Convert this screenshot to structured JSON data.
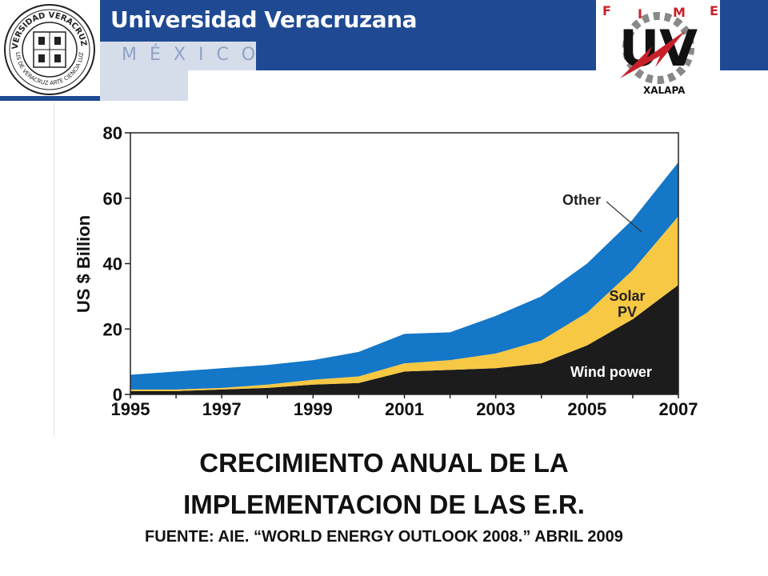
{
  "header": {
    "title": "Universidad Veracruzana",
    "subtitle": "MÉXICO",
    "seal_alt": "UNIVERSIDAD VERACRUZANA",
    "seal_motto": "LIS DE VERACRUZ ARTE CIENCIA LUZ",
    "fime_letters": [
      "F",
      "I",
      "M",
      "E"
    ],
    "fime_logo_text": "UV",
    "fime_campus": "XALAPA",
    "colors": {
      "brand_blue": "#1f4a93",
      "light_strip": "#d6ddea",
      "fime_red": "#c8202a"
    }
  },
  "chart_data": {
    "type": "area",
    "stacked": true,
    "title": "",
    "xlabel": "",
    "ylabel": "US $ Billion",
    "x": [
      1995,
      1996,
      1997,
      1998,
      1999,
      2000,
      2001,
      2002,
      2003,
      2004,
      2005,
      2006,
      2007
    ],
    "x_ticks": [
      "1995",
      "1997",
      "1999",
      "2001",
      "2003",
      "2005",
      "2007"
    ],
    "y_ticks": [
      "0",
      "20",
      "40",
      "60",
      "80"
    ],
    "ylim": [
      0,
      80
    ],
    "xlim": [
      1995,
      2007
    ],
    "series": [
      {
        "name": "Wind power",
        "color": "#1c1c1c",
        "values": [
          1,
          1,
          1.5,
          2,
          3,
          3.5,
          7,
          7.5,
          8,
          9.5,
          15,
          23,
          33.5
        ]
      },
      {
        "name": "Solar PV",
        "color": "#f7c844",
        "values": [
          0.5,
          0.5,
          0.5,
          1,
          1.5,
          2,
          2.5,
          3,
          4.5,
          7,
          10,
          15,
          21
        ]
      },
      {
        "name": "Other",
        "color": "#1477c8",
        "values": [
          4.5,
          5.5,
          6,
          6,
          6,
          7.5,
          9,
          8.5,
          11.5,
          13.5,
          15,
          15.5,
          16.5
        ]
      }
    ],
    "labels": {
      "other": "Other",
      "solar_line1": "Solar",
      "solar_line2": "PV",
      "wind": "Wind power"
    },
    "grid": false,
    "legend": "inline labels"
  },
  "caption": {
    "line1": "CRECIMIENTO ANUAL DE LA",
    "line2": "IMPLEMENTACION DE LAS E.R.",
    "source": "FUENTE: AIE. “WORLD ENERGY OUTLOOK 2008.” ABRIL 2009"
  }
}
